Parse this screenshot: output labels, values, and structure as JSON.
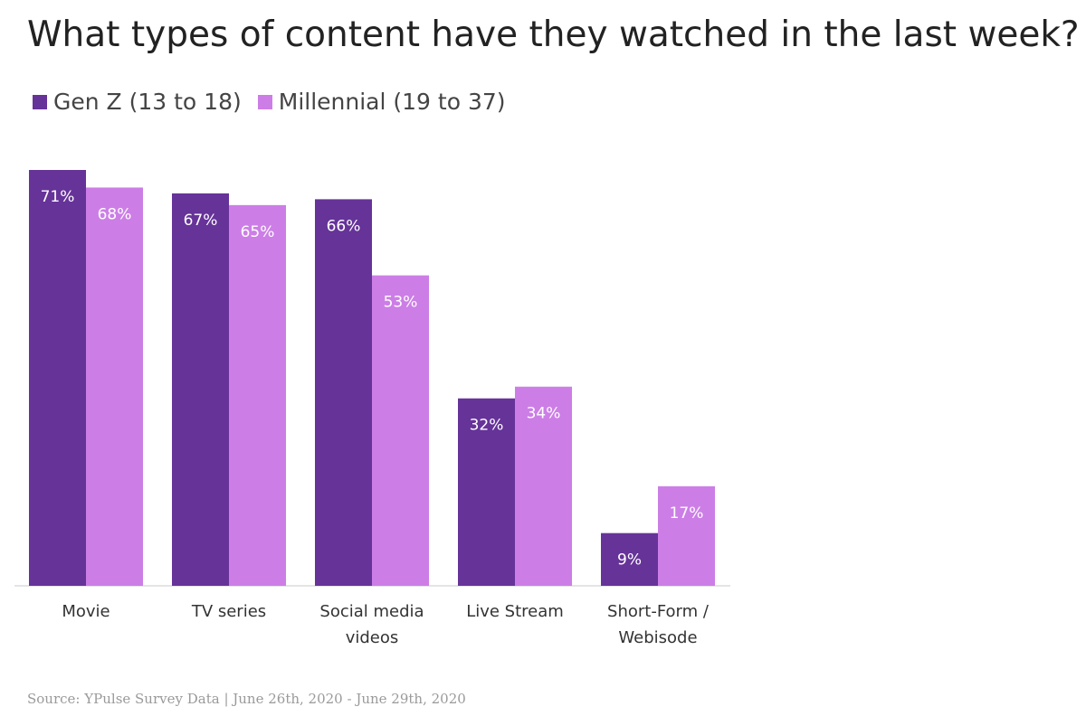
{
  "title": "What types of content have they watched in the last week?",
  "source": "Source: YPulse Survey Data | June 26th, 2020 - June 29th, 2020",
  "chart_data": {
    "type": "bar",
    "title": "What types of content have they watched in the last week?",
    "categories": [
      [
        "Movie"
      ],
      [
        "TV series"
      ],
      [
        "Social media",
        "videos"
      ],
      [
        "Live Stream"
      ],
      [
        "Short-Form /",
        "Webisode"
      ]
    ],
    "series": [
      {
        "name": "Gen Z (13 to 18)",
        "color": "#663399",
        "values": [
          71,
          67,
          66,
          32,
          9
        ]
      },
      {
        "name": "Millennial (19 to 37)",
        "color": "#cc7ee6",
        "values": [
          68,
          65,
          53,
          34,
          17
        ]
      }
    ],
    "value_suffix": "%",
    "ylim": [
      0,
      71
    ],
    "legend_position": "top-left",
    "grid": false
  }
}
